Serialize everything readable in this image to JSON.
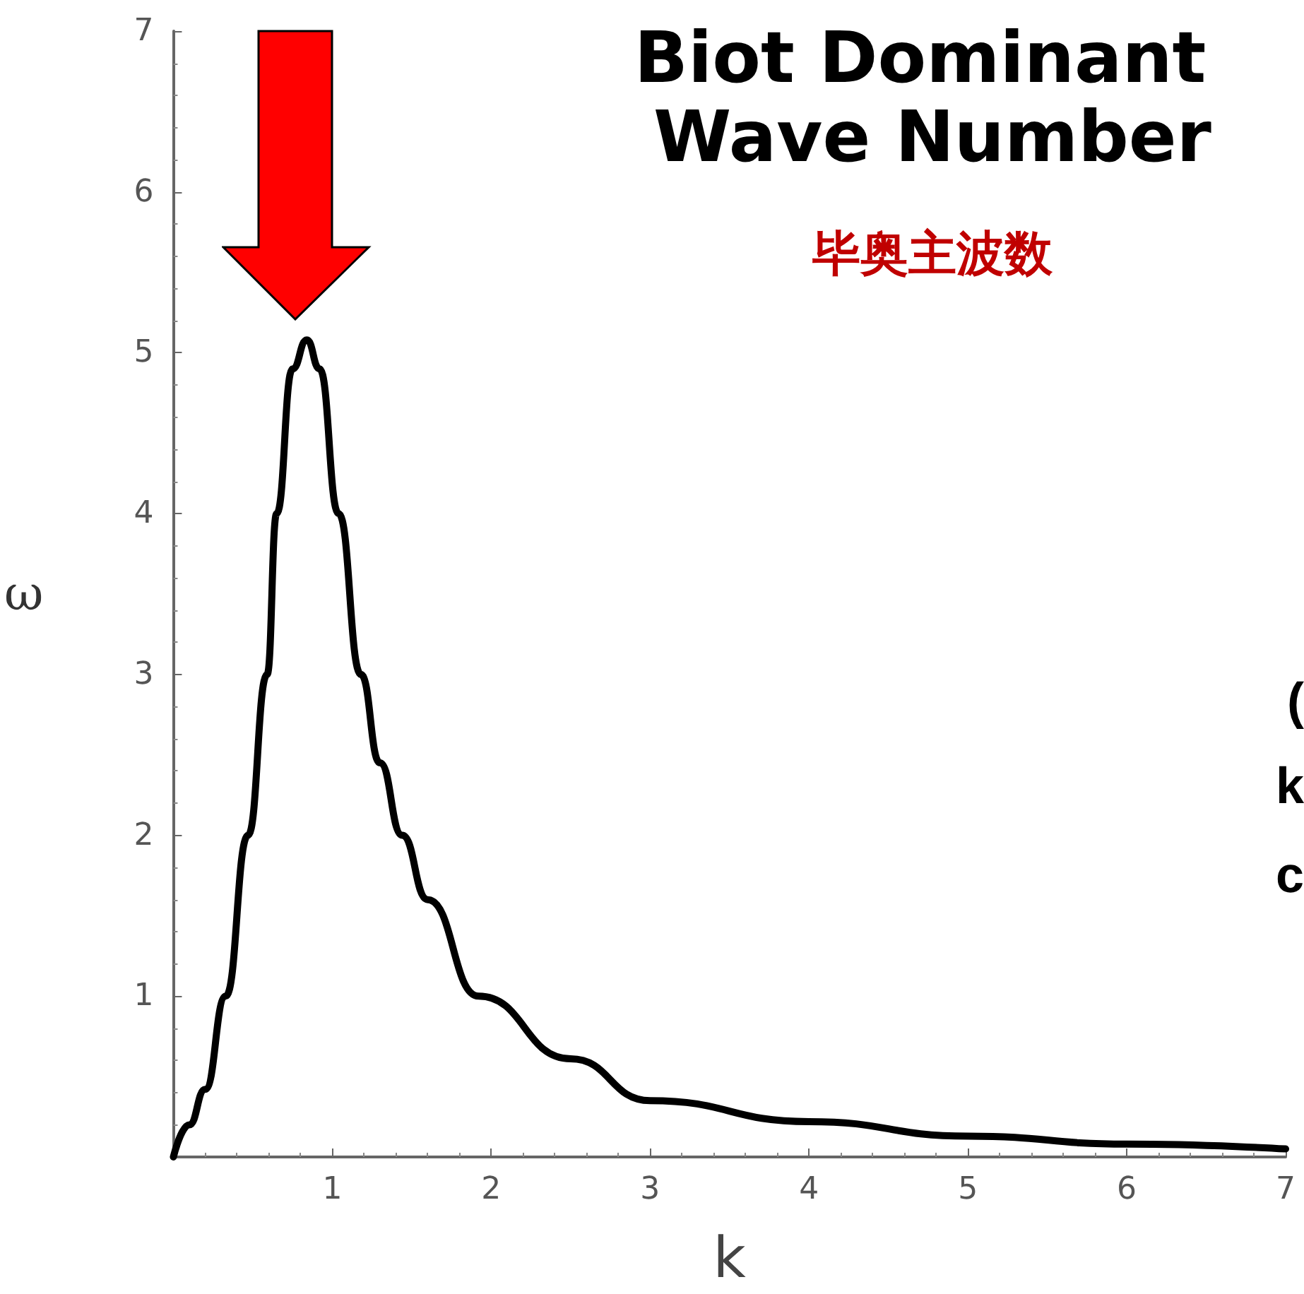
{
  "chart_data": {
    "type": "line",
    "title": "Biot Dominant Wave Number",
    "subtitle": "毕奥主波数",
    "xlabel": "k",
    "ylabel": "ω",
    "annotations": [
      "(",
      "k",
      "c"
    ],
    "x": [
      0,
      0.1,
      0.2,
      0.33,
      0.47,
      0.59,
      0.65,
      0.75,
      0.84,
      0.92,
      1.04,
      1.18,
      1.3,
      1.44,
      1.6,
      1.92,
      2.5,
      3,
      4,
      5,
      6,
      7
    ],
    "series": [
      {
        "color": "#000000",
        "values": [
          0,
          0.2,
          0.42,
          1,
          2,
          3,
          4,
          4.9,
          5.08,
          4.9,
          4,
          3,
          2.45,
          2,
          1.6,
          1,
          0.61,
          0.35,
          0.22,
          0.13,
          0.08,
          0.05
        ]
      }
    ],
    "xlim": [
      0,
      7
    ],
    "ylim": [
      0,
      7
    ],
    "xticks": [
      1,
      2,
      3,
      4,
      5,
      6,
      7
    ],
    "yticks": [
      1,
      2,
      3,
      4,
      5,
      6,
      7
    ],
    "line_style": "solid"
  }
}
